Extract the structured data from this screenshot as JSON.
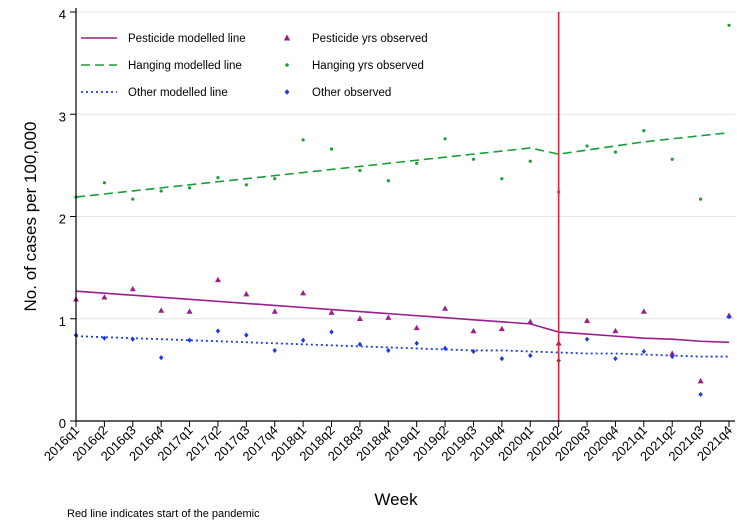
{
  "chart_data": {
    "type": "line",
    "xlabel": "Week",
    "ylabel": "No. of cases per 100,000",
    "ylim": [
      0,
      4
    ],
    "yticks": [
      "0",
      "1",
      "2",
      "3",
      "4"
    ],
    "categories": [
      "2016q1",
      "2016q2",
      "2016q3",
      "2016q4",
      "2017q1",
      "2017q2",
      "2017q3",
      "2017q4",
      "2018q1",
      "2018q2",
      "2018q3",
      "2018q4",
      "2019q1",
      "2019q2",
      "2019q3",
      "2019q4",
      "2020q1",
      "2020q2",
      "2020q3",
      "2020q4",
      "2021q1",
      "2021q2",
      "2021q3",
      "2021q4"
    ],
    "pandemic_start": "2020q2",
    "note": "Red line indicates start of the pandemic",
    "series": [
      {
        "name": "Pesticide modelled line",
        "kind": "line",
        "style": "solid",
        "color": "#9b1e8c",
        "values": [
          1.27,
          1.25,
          1.23,
          1.21,
          1.19,
          1.17,
          1.15,
          1.13,
          1.11,
          1.09,
          1.07,
          1.05,
          1.03,
          1.01,
          0.99,
          0.97,
          0.95,
          0.87,
          0.85,
          0.83,
          0.81,
          0.8,
          0.78,
          0.77
        ]
      },
      {
        "name": "Pesticide yrs observed",
        "kind": "points",
        "marker": "triangle",
        "color": "#9b1e8c",
        "values": [
          1.19,
          1.21,
          1.29,
          1.08,
          1.07,
          1.38,
          1.24,
          1.07,
          1.25,
          1.06,
          1.0,
          1.01,
          0.91,
          1.1,
          0.88,
          0.9,
          0.97,
          0.76,
          0.98,
          0.88,
          1.07,
          0.66,
          0.39,
          1.03
        ]
      },
      {
        "name": "Hanging modelled line",
        "kind": "line",
        "style": "dashed",
        "color": "#1a9e3a",
        "values": [
          2.19,
          2.22,
          2.25,
          2.28,
          2.31,
          2.34,
          2.37,
          2.4,
          2.43,
          2.46,
          2.49,
          2.52,
          2.55,
          2.58,
          2.61,
          2.64,
          2.67,
          2.61,
          2.65,
          2.69,
          2.73,
          2.76,
          2.79,
          2.82
        ]
      },
      {
        "name": "Hanging yrs observed",
        "kind": "points",
        "marker": "dot",
        "color": "#1a9e3a",
        "values": [
          2.19,
          2.33,
          2.17,
          2.25,
          2.28,
          2.38,
          2.31,
          2.37,
          2.75,
          2.66,
          2.45,
          2.35,
          2.52,
          2.76,
          2.56,
          2.37,
          2.54,
          2.24,
          2.69,
          2.63,
          2.84,
          2.56,
          2.17,
          3.87
        ]
      },
      {
        "name": "Other modelled line",
        "kind": "line",
        "style": "dotted",
        "color": "#1d3be0",
        "values": [
          0.83,
          0.82,
          0.81,
          0.8,
          0.79,
          0.78,
          0.77,
          0.76,
          0.75,
          0.74,
          0.73,
          0.72,
          0.71,
          0.7,
          0.69,
          0.69,
          0.68,
          0.67,
          0.66,
          0.66,
          0.65,
          0.64,
          0.63,
          0.63
        ]
      },
      {
        "name": "Other observed",
        "kind": "points",
        "marker": "diamond",
        "color": "#1d3be0",
        "values": [
          0.84,
          0.81,
          0.8,
          0.62,
          0.79,
          0.88,
          0.84,
          0.69,
          0.79,
          0.87,
          0.75,
          0.69,
          0.76,
          0.71,
          0.68,
          0.61,
          0.64,
          0.59,
          0.8,
          0.61,
          0.68,
          0.63,
          0.26,
          1.02
        ]
      }
    ]
  }
}
